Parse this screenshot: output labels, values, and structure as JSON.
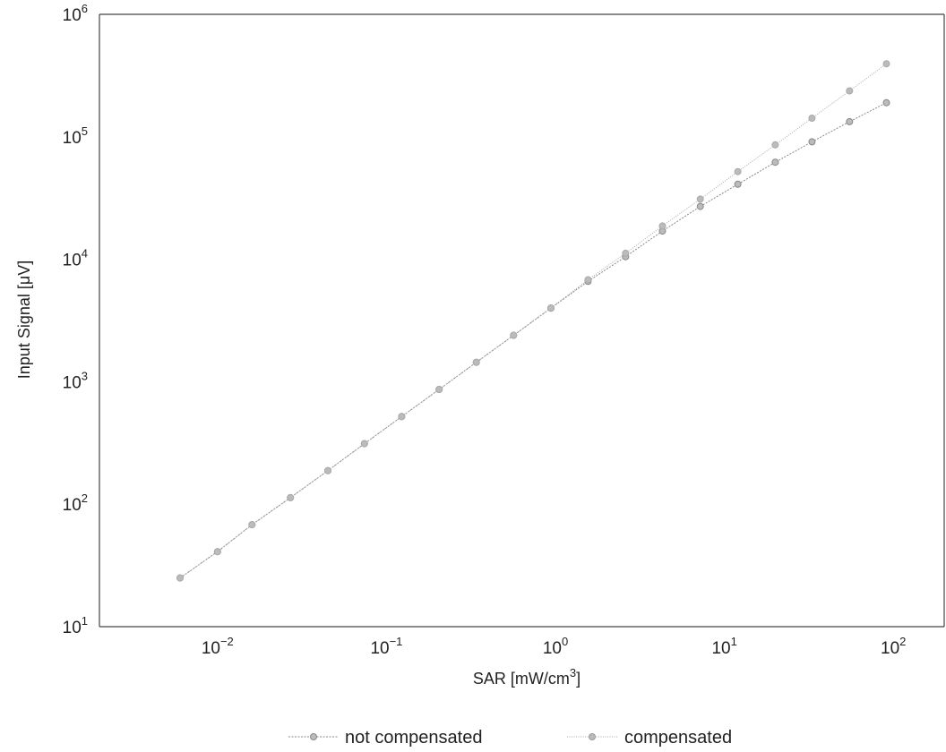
{
  "chart_data": {
    "type": "line",
    "title": "",
    "xlabel": {
      "base": "SAR [mW/cm",
      "sup": "3",
      "tail": "]"
    },
    "ylabel": "Input Signal [μV]",
    "x_scale": "log",
    "y_scale": "log",
    "xlim": [
      0.002,
      200
    ],
    "ylim": [
      10,
      1000000
    ],
    "x_ticks": [
      {
        "base": "10",
        "exp": "−2",
        "value": 0.01
      },
      {
        "base": "10",
        "exp": "−1",
        "value": 0.1
      },
      {
        "base": "10",
        "exp": "0",
        "value": 1
      },
      {
        "base": "10",
        "exp": "1",
        "value": 10
      },
      {
        "base": "10",
        "exp": "2",
        "value": 100
      }
    ],
    "y_ticks": [
      {
        "base": "10",
        "exp": "1",
        "value": 10
      },
      {
        "base": "10",
        "exp": "2",
        "value": 100
      },
      {
        "base": "10",
        "exp": "3",
        "value": 1000
      },
      {
        "base": "10",
        "exp": "4",
        "value": 10000
      },
      {
        "base": "10",
        "exp": "5",
        "value": 100000
      },
      {
        "base": "10",
        "exp": "6",
        "value": 1000000
      }
    ],
    "grid": false,
    "legend_position": "bottom-center",
    "series": [
      {
        "name": "not compensated",
        "color": "#888888",
        "marker": "circle",
        "x": [
          0.006,
          0.01,
          0.016,
          0.027,
          0.045,
          0.074,
          0.123,
          0.205,
          0.34,
          0.565,
          0.94,
          1.56,
          2.6,
          4.3,
          7.2,
          12,
          20,
          33,
          55,
          91
        ],
        "y": [
          25,
          41,
          68,
          113,
          188,
          312,
          520,
          865,
          1440,
          2390,
          3990,
          6600,
          10500,
          17000,
          27000,
          41000,
          62000,
          91000,
          133000,
          190000
        ]
      },
      {
        "name": "compensated",
        "color": "#aaaaaa",
        "marker": "circle",
        "x": [
          0.006,
          0.01,
          0.016,
          0.027,
          0.045,
          0.074,
          0.123,
          0.205,
          0.34,
          0.565,
          0.94,
          1.56,
          2.6,
          4.3,
          7.2,
          12,
          20,
          33,
          55,
          91
        ],
        "y": [
          25,
          41,
          68,
          113,
          188,
          312,
          520,
          865,
          1440,
          2400,
          4000,
          6800,
          11200,
          18700,
          31000,
          52000,
          86000,
          142000,
          237000,
          395000
        ]
      }
    ]
  }
}
